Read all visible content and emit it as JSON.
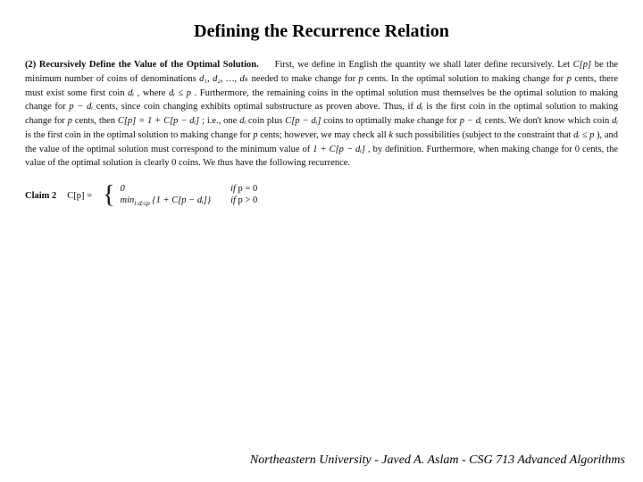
{
  "colors": {
    "background": "#ffffff",
    "text": "#0e0e0e",
    "title": "#000000"
  },
  "typography": {
    "title_fontsize": 20,
    "body_fontsize": 10.5,
    "footer_fontsize": 14,
    "font_family": "Times New Roman"
  },
  "title": "Defining the Recurrence Relation",
  "section": {
    "number": "(2)",
    "heading": "Recursively Define the Value of the Optimal Solution.",
    "lead": "First, we define in English the quantity we shall later define recursively. Let ",
    "cp": "C[p]",
    "after_cp": " be the minimum number of coins of denominations ",
    "denoms": "d₁, d₂, …, dₖ",
    "after_denoms": " needed to make change for ",
    "p": "p",
    "cents1": " cents. In the optimal solution to making change for ",
    "cents2": " cents, there must exist some first coin ",
    "di": "dᵢ",
    "where": ", where ",
    "di_le_p": "dᵢ ≤ p",
    "furthermore": ". Furthermore, the remaining coins in the optimal solution must themselves be the optimal solution to making change for ",
    "p_minus_di": "p − dᵢ",
    "cents3": " cents, since coin changing exhibits optimal substructure as proven above. Thus, if ",
    "is_first": " is the first coin in the optimal solution to making change for ",
    "cents4": " cents, then ",
    "cp_eq": "C[p] = 1 + C[p − dᵢ]",
    "ie": "; i.e., one ",
    "coin_plus": " coin plus ",
    "cpmdi": "C[p − dᵢ]",
    "coins_opt": " coins to optimally make change for ",
    "cents5": " cents. We don't know which coin ",
    "is_first2": " is the first coin in the optimal solution to making change for ",
    "cents6": " cents; however, we may check all ",
    "k": "k",
    "such_poss": " such possibilities (subject to the constraint that ",
    "di_le_p2": "dᵢ ≤ p",
    "and_value": "), and the value of the optimal solution must correspond to the minimum value of ",
    "one_plus": "1 + C[p − dᵢ]",
    "by_def": ", by definition. Furthermore, when making change for 0 cents, the value of the optimal solution is clearly 0 coins. We thus have the following recurrence."
  },
  "claim": {
    "label": "Claim 2",
    "lhs": "C[p] =",
    "case1_expr": "0",
    "case1_cond_if": "if ",
    "case1_cond": "p = 0",
    "case2_expr": "minᵢ₀₌ₖ {1 + C[p − dᵢ]}",
    "case2_pretty": "min",
    "case2_sub": "i:dᵢ≤p",
    "case2_body": "{1 + C[p − dᵢ]}",
    "case2_cond_if": "if ",
    "case2_cond": "p > 0"
  },
  "footer": "Northeastern University - Javed A. Aslam - CSG 713 Advanced Algorithms"
}
